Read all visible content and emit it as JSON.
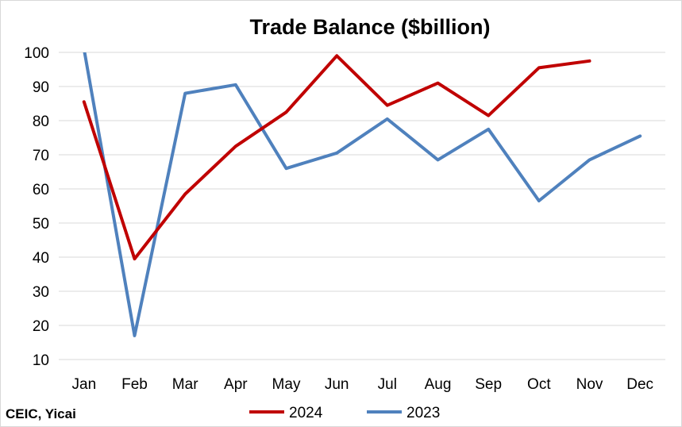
{
  "chart_data": {
    "type": "line",
    "title": "Trade Balance ($billion)",
    "source": "CEIC, Yicai",
    "categories": [
      "Jan",
      "Feb",
      "Mar",
      "Apr",
      "May",
      "Jun",
      "Jul",
      "Aug",
      "Sep",
      "Oct",
      "Nov",
      "Dec"
    ],
    "yticks": [
      10,
      20,
      30,
      40,
      50,
      60,
      70,
      80,
      90,
      100
    ],
    "ylim": [
      10,
      100
    ],
    "grid": true,
    "legend_position": "bottom",
    "series": [
      {
        "name": "2024",
        "color": "#c00000",
        "values": [
          85.5,
          39.5,
          58.5,
          72.5,
          82.5,
          99,
          84.5,
          91,
          81.5,
          95.5,
          97.5,
          null
        ]
      },
      {
        "name": "2023",
        "color": "#4f81bd",
        "values": [
          101,
          17,
          88,
          90.5,
          66,
          70.5,
          80.5,
          68.5,
          77.5,
          56.5,
          68.5,
          75.5
        ]
      }
    ]
  }
}
